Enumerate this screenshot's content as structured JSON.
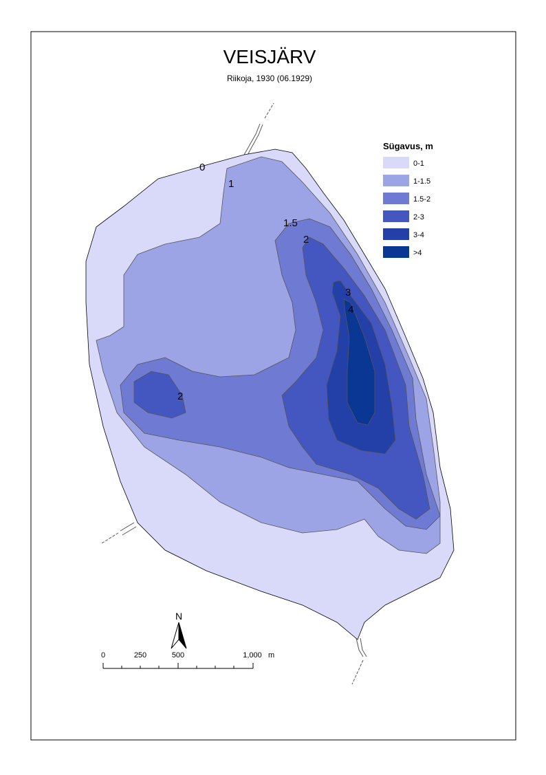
{
  "map": {
    "title": "VEISJÄRV",
    "subtitle": "Riikoja, 1930 (06.1929)",
    "legend": {
      "title": "Sügavus, m",
      "items": [
        {
          "label": "0-1",
          "color": "#d9d9fa"
        },
        {
          "label": "1-1.5",
          "color": "#9ca4e6"
        },
        {
          "label": "1.5-2",
          "color": "#6f7bd3"
        },
        {
          "label": "2-3",
          "color": "#4456c0"
        },
        {
          "label": "3-4",
          "color": "#2240a8"
        },
        {
          "label": ">4",
          "color": "#0a3794"
        }
      ]
    },
    "contour_labels": [
      "0",
      "1",
      "1.5",
      "2",
      "3",
      "4",
      "2"
    ],
    "north": "N",
    "scale_labels": [
      "0",
      "250",
      "500",
      "1,000"
    ],
    "scale_unit": "m"
  }
}
